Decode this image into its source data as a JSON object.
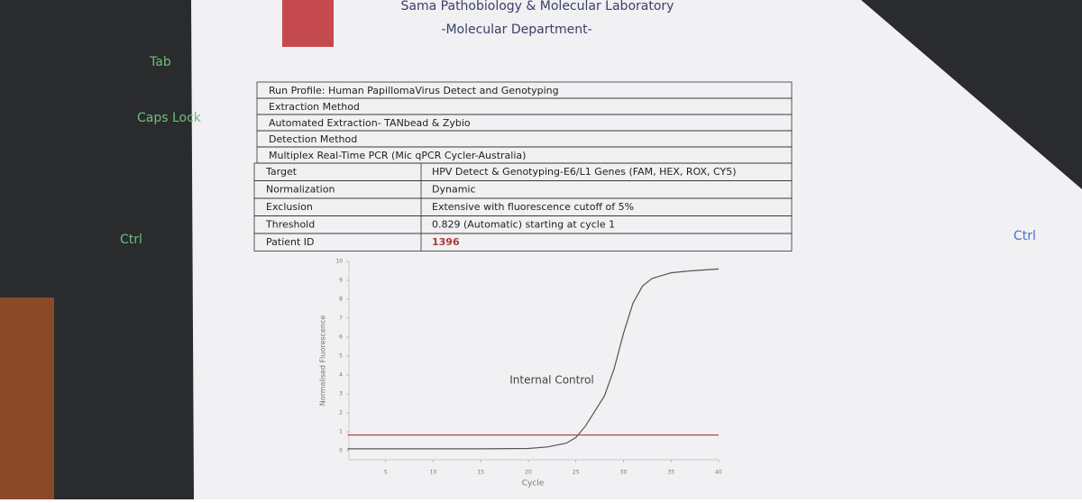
{
  "keyboard": [
    "Tab",
    "Caps Lock",
    "Ctrl",
    "Ctrl"
  ],
  "header": {
    "title": "Sama Pathobiology & Molecular Laboratory",
    "subtitle": "-Molecular Department-"
  },
  "table": {
    "wide_rows": [
      "Run Profile: Human PapillomaVirus Detect and Genotyping",
      "Extraction Method",
      "Automated Extraction- TANbead & Zybio",
      "Detection Method",
      "Multiplex Real-Time PCR (Mic qPCR Cycler-Australia)"
    ],
    "rows": [
      [
        "Target",
        "HPV Detect & Genotyping-E6/L1 Genes (FAM, HEX, ROX, CY5)"
      ],
      [
        "Normalization",
        "Dynamic"
      ],
      [
        "Exclusion",
        "Extensive with fluorescence cutoff of 5%"
      ],
      [
        "Threshold",
        "0.829 (Automatic) starting at cycle 1"
      ],
      [
        "Patient ID",
        "1396"
      ]
    ]
  },
  "chart_data": {
    "type": "line",
    "x_label": "Cycle",
    "y_label": "Normalised Fluorescence",
    "annotation": "Internal Control",
    "xlim": [
      0,
      40
    ],
    "ylim": [
      0,
      10
    ],
    "xticks": [
      5,
      10,
      15,
      20,
      25,
      30,
      35,
      40
    ],
    "yticks": [
      0,
      1,
      2,
      3,
      4,
      5,
      6,
      7,
      8,
      9,
      10
    ],
    "series": [
      {
        "name": "Internal Control",
        "color": "#555555",
        "x": [
          1,
          5,
          10,
          15,
          20,
          22,
          24,
          25,
          26,
          27,
          28,
          29,
          30,
          31,
          32,
          33,
          35,
          37,
          40
        ],
        "values": [
          0.1,
          0.1,
          0.1,
          0.1,
          0.12,
          0.2,
          0.4,
          0.7,
          1.3,
          2.1,
          2.9,
          4.3,
          6.2,
          7.8,
          8.7,
          9.1,
          9.4,
          9.5,
          9.6
        ]
      },
      {
        "name": "Threshold",
        "color": "#b03a3a",
        "x": [
          1,
          40
        ],
        "values": [
          0.83,
          0.83
        ]
      }
    ]
  }
}
